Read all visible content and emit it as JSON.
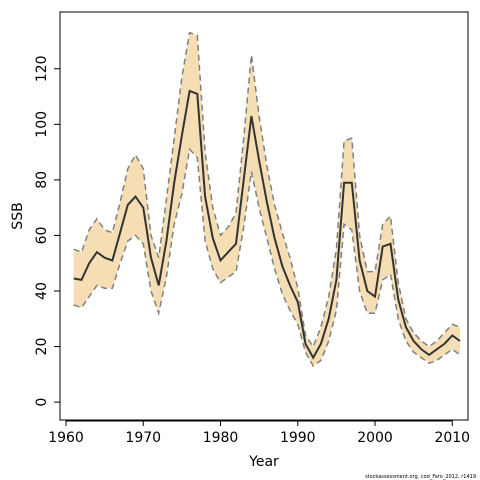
{
  "chart_data": {
    "type": "area",
    "xlabel": "Year",
    "ylabel": "SSB",
    "footnote": "stockassessment.org, cod_Faro_2012, r1419",
    "xlim": [
      1960,
      2011
    ],
    "ylim": [
      -5,
      139
    ],
    "xticks": [
      1960,
      1970,
      1980,
      1990,
      2000,
      2010
    ],
    "yticks": [
      0,
      20,
      40,
      60,
      80,
      100,
      120
    ],
    "grid": false,
    "colors": {
      "band": "#f5deb3",
      "bounds": "#808080",
      "estimate": "#333333"
    },
    "years": [
      1961,
      1962,
      1963,
      1964,
      1965,
      1966,
      1967,
      1968,
      1969,
      1970,
      1971,
      1972,
      1973,
      1974,
      1975,
      1976,
      1977,
      1978,
      1979,
      1980,
      1981,
      1982,
      1983,
      1984,
      1985,
      1986,
      1987,
      1988,
      1989,
      1990,
      1991,
      1992,
      1993,
      1994,
      1995,
      1996,
      1997,
      1998,
      1999,
      2000,
      2001,
      2002,
      2003,
      2004,
      2005,
      2006,
      2007,
      2008,
      2009,
      2010,
      2011
    ],
    "series": [
      {
        "key": "upper",
        "values": [
          55,
          54,
          62,
          66,
          62,
          61,
          72,
          84,
          89,
          84,
          60,
          52,
          73,
          95,
          117,
          133,
          132,
          90,
          70,
          60,
          63,
          68,
          95,
          125,
          103,
          85,
          71,
          61,
          52,
          41,
          24,
          20,
          27,
          38,
          55,
          94,
          95,
          60,
          47,
          47,
          64,
          67,
          43,
          30,
          25,
          22,
          20,
          22,
          25,
          28,
          27
        ]
      },
      {
        "key": "estimate",
        "values": [
          44.5,
          44,
          50,
          54,
          52,
          51,
          61,
          71,
          74,
          70,
          52,
          42,
          58,
          79,
          96,
          112,
          111,
          74,
          59,
          51,
          54,
          57,
          80,
          103,
          87,
          72,
          59,
          49,
          42,
          36,
          21,
          16,
          21,
          30,
          44,
          79,
          79,
          51,
          40,
          38,
          56,
          57,
          37,
          27,
          22,
          19,
          17,
          19,
          21,
          24,
          22
        ]
      },
      {
        "key": "lower",
        "values": [
          35,
          34,
          38,
          42,
          41,
          41,
          50,
          58,
          60,
          57,
          40,
          32,
          45,
          64,
          75,
          91,
          88,
          58,
          48,
          43,
          45,
          47,
          63,
          83,
          70,
          59,
          48,
          39,
          33,
          28,
          18,
          13,
          15,
          22,
          33,
          64,
          62,
          40,
          32,
          32,
          44,
          46,
          30,
          22,
          18,
          16,
          14,
          15,
          17,
          19,
          17
        ]
      }
    ]
  }
}
